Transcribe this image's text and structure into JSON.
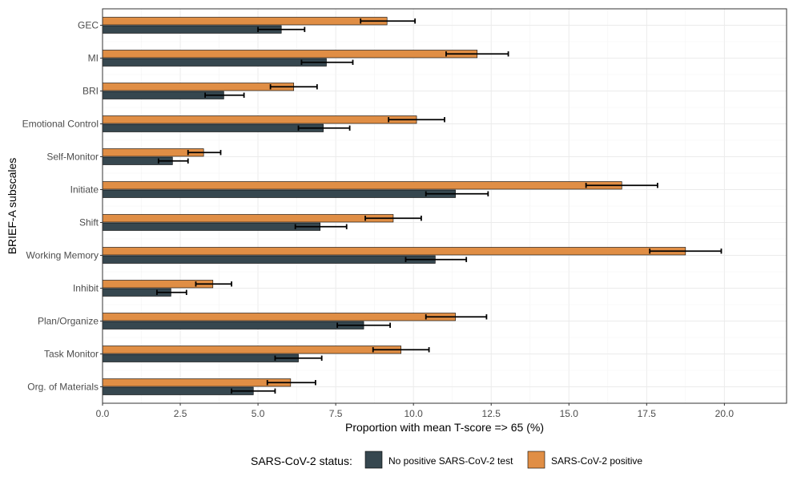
{
  "chart_data": {
    "type": "bar",
    "orientation": "horizontal",
    "title": "",
    "xlabel": "Proportion with mean T-score => 65 (%)",
    "ylabel": "BRIEF-A subscales",
    "xlim": [
      0,
      22
    ],
    "xticks": [
      0.0,
      2.5,
      5.0,
      7.5,
      10.0,
      12.5,
      15.0,
      17.5,
      20.0
    ],
    "xtick_labels": [
      "0.0",
      "2.5",
      "5.0",
      "7.5",
      "10.0",
      "12.5",
      "15.0",
      "17.5",
      "20.0"
    ],
    "grid": true,
    "categories": [
      "GEC",
      "MI",
      "BRI",
      "Emotional Control",
      "Self-Monitor",
      "Initiate",
      "Shift",
      "Working Memory",
      "Inhibit",
      "Plan/Organize",
      "Task Monitor",
      "Org. of Materials"
    ],
    "series": [
      {
        "name": "SARS-CoV-2 positive",
        "color": "#e08e45",
        "values": [
          9.15,
          12.05,
          6.15,
          10.1,
          3.25,
          16.7,
          9.35,
          18.75,
          3.55,
          11.35,
          9.6,
          6.05
        ],
        "error_low": [
          8.3,
          11.05,
          5.4,
          9.2,
          2.75,
          15.55,
          8.45,
          17.6,
          3.0,
          10.4,
          8.7,
          5.3
        ],
        "error_high": [
          10.05,
          13.05,
          6.9,
          11.0,
          3.8,
          17.85,
          10.25,
          19.9,
          4.15,
          12.35,
          10.5,
          6.85
        ]
      },
      {
        "name": "No positive SARS-CoV-2 test",
        "color": "#36474f",
        "values": [
          5.75,
          7.2,
          3.9,
          7.1,
          2.25,
          11.35,
          7.0,
          10.7,
          2.2,
          8.4,
          6.3,
          4.85
        ],
        "error_low": [
          5.0,
          6.4,
          3.3,
          6.3,
          1.8,
          10.4,
          6.2,
          9.75,
          1.75,
          7.55,
          5.55,
          4.15
        ],
        "error_high": [
          6.5,
          8.05,
          4.55,
          7.95,
          2.75,
          12.4,
          7.85,
          11.7,
          2.7,
          9.25,
          7.05,
          5.55
        ]
      }
    ],
    "legend": {
      "title": "SARS-CoV-2 status:",
      "position": "bottom",
      "items": [
        "No positive SARS-CoV-2 test",
        "SARS-CoV-2 positive"
      ]
    }
  }
}
